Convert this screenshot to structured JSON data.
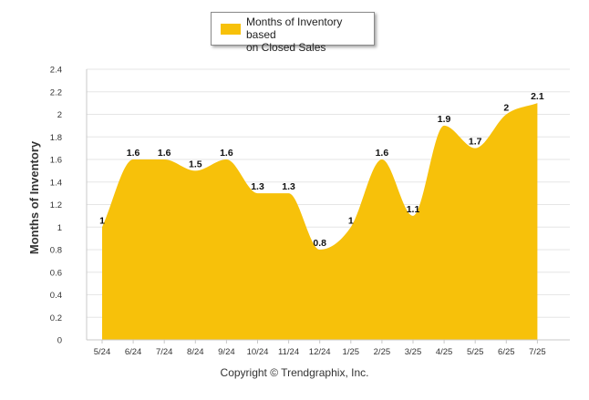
{
  "chart_data": {
    "type": "area",
    "categories": [
      "5/24",
      "6/24",
      "7/24",
      "8/24",
      "9/24",
      "10/24",
      "11/24",
      "12/24",
      "1/25",
      "2/25",
      "3/25",
      "4/25",
      "5/25",
      "6/25",
      "7/25"
    ],
    "series": [
      {
        "name": "Months of Inventory based on Closed Sales",
        "values": [
          1,
          1.6,
          1.6,
          1.5,
          1.6,
          1.3,
          1.3,
          0.8,
          1,
          1.6,
          1.1,
          1.9,
          1.7,
          2,
          2.1
        ],
        "data_labels": [
          "1",
          "1.6",
          "1.6",
          "1.5",
          "1.6",
          "1.3",
          "1.3",
          "0.8",
          "1",
          "1.6",
          "1.1",
          "1.9",
          "1.7",
          "2",
          "2.1"
        ]
      }
    ],
    "ylabel": "Months of Inventory",
    "ylim": [
      0,
      2.4
    ],
    "yticks": [
      "0",
      "0.2",
      "0.4",
      "0.6",
      "0.8",
      "1",
      "1.2",
      "1.4",
      "1.6",
      "1.8",
      "2",
      "2.2",
      "2.4"
    ],
    "grid": true,
    "legend": "top-center",
    "colors": {
      "fill": "#f7c10a",
      "grid": "#e6e6e6",
      "text": "#333333"
    }
  },
  "legend": {
    "lines": [
      "Months of Inventory based",
      "on Closed Sales"
    ]
  },
  "footer": {
    "copyright": "Copyright © Trendgraphix, Inc."
  }
}
